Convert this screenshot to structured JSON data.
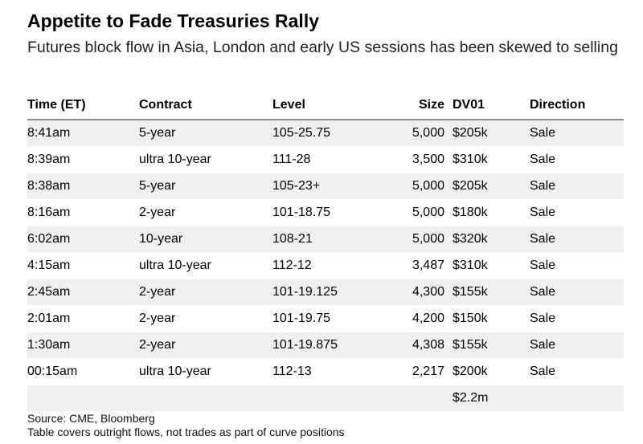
{
  "header": {
    "title": "Appetite to Fade Treasuries Rally",
    "subtitle": "Futures block flow in Asia, London and early US sessions has been skewed to selling"
  },
  "table": {
    "columns": [
      "Time (ET)",
      "Contract",
      "Level",
      "Size",
      "DV01",
      "Direction"
    ],
    "rows": [
      {
        "time": "8:41am",
        "contract": "5-year",
        "level": "105-25.75",
        "size": "5,000",
        "dv01": "$205k",
        "direction": "Sale"
      },
      {
        "time": "8:39am",
        "contract": "ultra 10-year",
        "level": "111-28",
        "size": "3,500",
        "dv01": "$310k",
        "direction": "Sale"
      },
      {
        "time": "8:38am",
        "contract": "5-year",
        "level": "105-23+",
        "size": "5,000",
        "dv01": "$205k",
        "direction": "Sale"
      },
      {
        "time": "8:16am",
        "contract": "2-year",
        "level": "101-18.75",
        "size": "5,000",
        "dv01": "$180k",
        "direction": "Sale"
      },
      {
        "time": "6:02am",
        "contract": "10-year",
        "level": "108-21",
        "size": "5,000",
        "dv01": "$320k",
        "direction": "Sale"
      },
      {
        "time": "4:15am",
        "contract": "ultra 10-year",
        "level": "112-12",
        "size": "3,487",
        "dv01": "$310k",
        "direction": "Sale"
      },
      {
        "time": "2:45am",
        "contract": "2-year",
        "level": "101-19.125",
        "size": "4,300",
        "dv01": "$155k",
        "direction": "Sale"
      },
      {
        "time": "2:01am",
        "contract": "2-year",
        "level": "101-19.75",
        "size": "4,200",
        "dv01": "$150k",
        "direction": "Sale"
      },
      {
        "time": "1:30am",
        "contract": "2-year",
        "level": "101-19.875",
        "size": "4,308",
        "dv01": "$155k",
        "direction": "Sale"
      },
      {
        "time": "00:15am",
        "contract": "ultra 10-year",
        "level": "112-13",
        "size": "2,217",
        "dv01": "$200k",
        "direction": "Sale"
      }
    ],
    "total": {
      "time": "",
      "contract": "",
      "level": "",
      "size": "",
      "dv01": "$2.2m",
      "direction": ""
    }
  },
  "footer": {
    "source": "Source: CME, Bloomberg",
    "note": "Table covers outright flows, not trades as part of curve positions"
  }
}
